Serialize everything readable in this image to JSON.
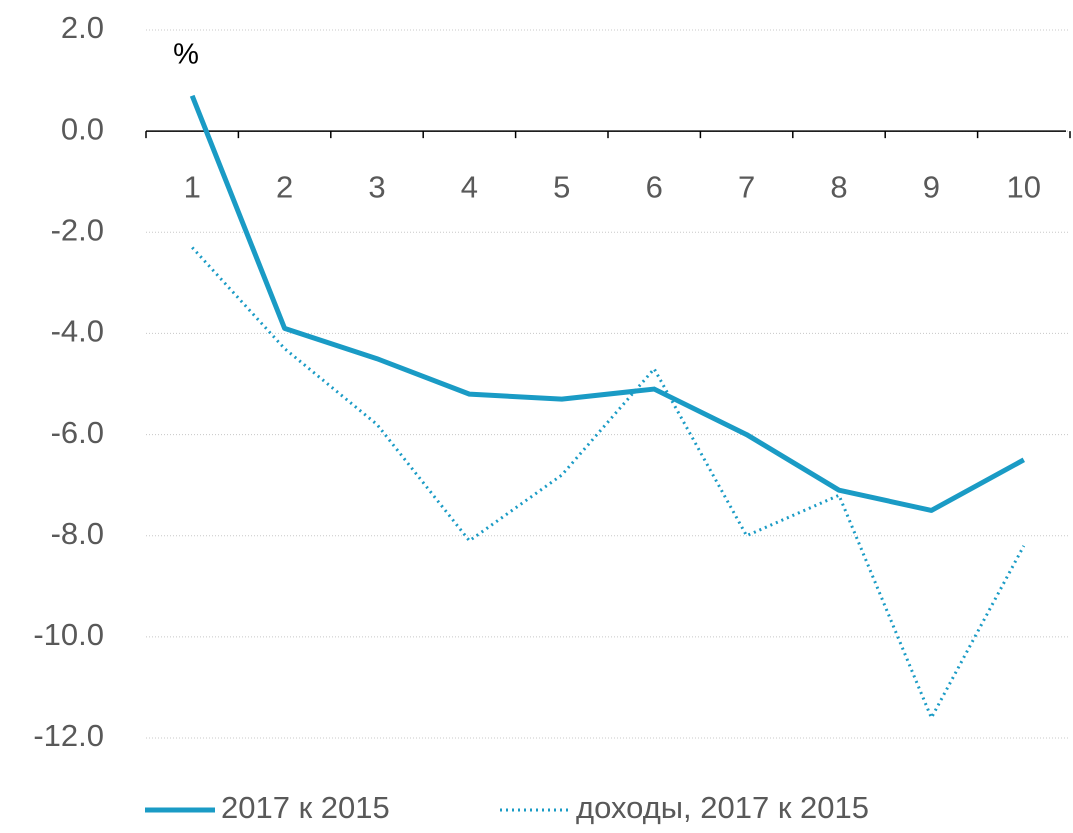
{
  "chart_data": {
    "type": "line",
    "annotation": "%",
    "categories": [
      "1",
      "2",
      "3",
      "4",
      "5",
      "6",
      "7",
      "8",
      "9",
      "10"
    ],
    "series": [
      {
        "name": "2017 к 2015",
        "color": "#1a9bc5",
        "style": "solid",
        "values": [
          0.7,
          -3.9,
          -4.5,
          -5.2,
          -5.3,
          -5.1,
          -6.0,
          -7.1,
          -7.5,
          -6.5
        ]
      },
      {
        "name": "доходы, 2017 к 2015",
        "color": "#1a9bc5",
        "style": "dotted",
        "values": [
          -2.3,
          -4.3,
          -5.8,
          -8.1,
          -6.8,
          -4.7,
          -8.0,
          -7.2,
          -11.6,
          -8.2
        ]
      }
    ],
    "ylim": [
      -12,
      2
    ],
    "yticks": [
      {
        "value": 2,
        "label": "2.0"
      },
      {
        "value": 0,
        "label": "0.0"
      },
      {
        "value": -2,
        "label": "-2.0"
      },
      {
        "value": -4,
        "label": "-4.0"
      },
      {
        "value": -6,
        "label": "-6.0"
      },
      {
        "value": -8,
        "label": "-8.0"
      },
      {
        "value": -10,
        "label": "-10.0"
      },
      {
        "value": -12,
        "label": "-12.0"
      }
    ],
    "grid": true,
    "legend": "bottom"
  }
}
